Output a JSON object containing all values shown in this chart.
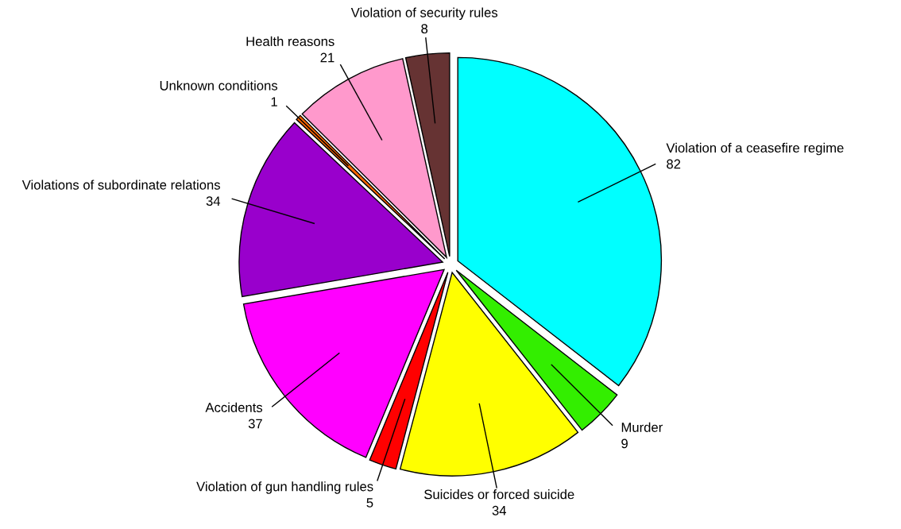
{
  "chart_data": {
    "type": "pie",
    "categories": [
      "Violation of a ceasefire regime",
      "Murder",
      "Suicides or forced suicide",
      "Violation of gun handling rules",
      "Accidents",
      "Violations of subordinate relations",
      "Unknown conditions",
      "Health reasons",
      "Violation of security rules"
    ],
    "values": [
      82,
      9,
      34,
      5,
      37,
      34,
      1,
      21,
      8
    ],
    "colors": [
      "#00ffff",
      "#33ee00",
      "#ffff00",
      "#ff0000",
      "#ff00ff",
      "#9900cc",
      "#ff6600",
      "#ff99cc",
      "#663333"
    ],
    "data_labels": true
  }
}
